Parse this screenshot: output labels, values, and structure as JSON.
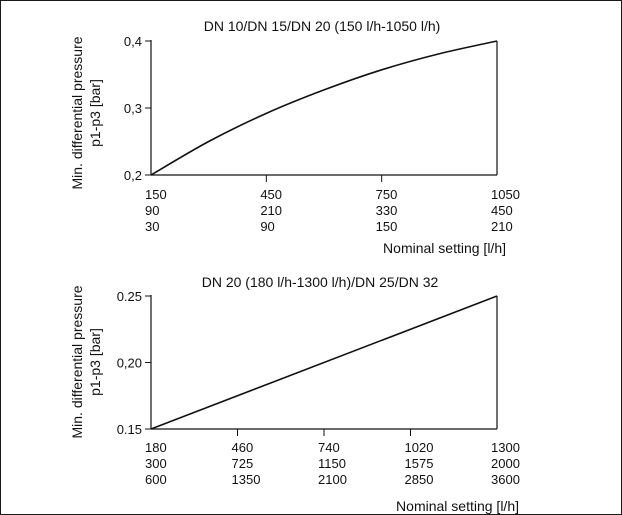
{
  "chart_data": [
    {
      "type": "line",
      "title": "DN 10/DN 15/DN 20 (150 l/h-1050 l/h)",
      "ylabel_line1": "Min. differential pressure",
      "ylabel_line2": "p1-p3 [bar]",
      "xlabel": "Nominal setting [l/h]",
      "ylim": [
        0.2,
        0.4
      ],
      "yticks": [
        "0,2",
        "0,3",
        "0,4"
      ],
      "xlim": [
        150,
        1050
      ],
      "xtick_rows": [
        [
          "150",
          "450",
          "750",
          "1050"
        ],
        [
          "90",
          "210",
          "330",
          "450"
        ],
        [
          "30",
          "90",
          "150",
          "210"
        ]
      ],
      "xtick_values": [
        150,
        450,
        750,
        1050
      ],
      "series": [
        {
          "x": [
            150,
            300,
            450,
            600,
            750,
            900,
            1050
          ],
          "y": [
            0.2,
            0.25,
            0.292,
            0.327,
            0.357,
            0.381,
            0.4
          ]
        }
      ],
      "grid": false
    },
    {
      "type": "line",
      "title": "DN 20 (180 l/h-1300 l/h)/DN 25/DN 32",
      "ylabel_line1": "Min. differential pressure",
      "ylabel_line2": "p1-p3 [bar]",
      "xlabel": "Nominal setting [l/h]",
      "ylim": [
        0.15,
        0.25
      ],
      "yticks": [
        "0.15",
        "0,20",
        "0.25"
      ],
      "xlim": [
        180,
        1300
      ],
      "xtick_rows": [
        [
          "180",
          "460",
          "740",
          "1020",
          "1300"
        ],
        [
          "300",
          "725",
          "1150",
          "1575",
          "2000"
        ],
        [
          "600",
          "1350",
          "2100",
          "2850",
          "3600"
        ]
      ],
      "xtick_values": [
        180,
        460,
        740,
        1020,
        1300
      ],
      "series": [
        {
          "x": [
            180,
            1300
          ],
          "y": [
            0.15,
            0.25
          ]
        }
      ],
      "grid": false
    }
  ]
}
